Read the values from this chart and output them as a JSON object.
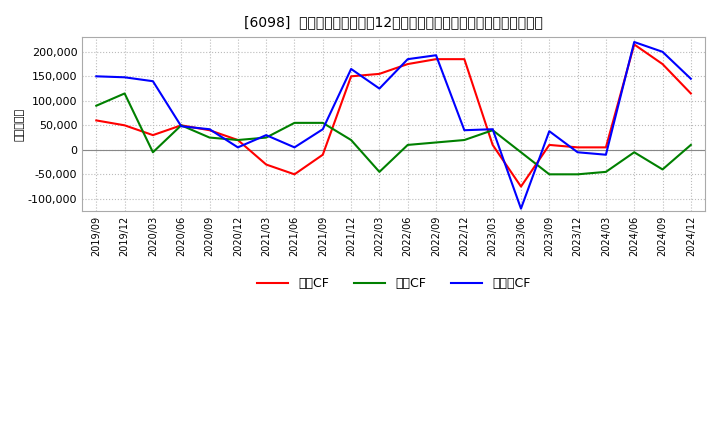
{
  "title": "[6098]  キャッシュフローの12か月移動合計の対前年同期増減額の推移",
  "ylabel": "（百万円）",
  "background_color": "#ffffff",
  "plot_bg_color": "#ffffff",
  "grid_color": "#aaaaaa",
  "x_labels": [
    "2019/09",
    "2019/12",
    "2020/03",
    "2020/06",
    "2020/09",
    "2020/12",
    "2021/03",
    "2021/06",
    "2021/09",
    "2021/12",
    "2022/03",
    "2022/06",
    "2022/09",
    "2022/12",
    "2023/03",
    "2023/06",
    "2023/09",
    "2023/12",
    "2024/03",
    "2024/06",
    "2024/09",
    "2024/12"
  ],
  "営業CF": [
    60000,
    50000,
    30000,
    50000,
    40000,
    20000,
    -30000,
    -50000,
    -10000,
    150000,
    155000,
    175000,
    185000,
    185000,
    10000,
    -75000,
    10000,
    5000,
    5000,
    215000,
    175000,
    115000
  ],
  "投資CF": [
    90000,
    115000,
    -5000,
    50000,
    25000,
    20000,
    25000,
    55000,
    55000,
    20000,
    -45000,
    10000,
    15000,
    20000,
    40000,
    -5000,
    -50000,
    -50000,
    -45000,
    -5000,
    -40000,
    10000
  ],
  "フリーCF": [
    150000,
    148000,
    140000,
    48000,
    42000,
    5000,
    30000,
    5000,
    42000,
    165000,
    125000,
    185000,
    193000,
    40000,
    42000,
    -120000,
    38000,
    -5000,
    -10000,
    220000,
    200000,
    145000
  ],
  "line_colors": {
    "営業CF": "#ff0000",
    "投資CF": "#008000",
    "フリーCF": "#0000ff"
  },
  "ylim": [
    -125000,
    230000
  ],
  "yticks": [
    -100000,
    -50000,
    0,
    50000,
    100000,
    150000,
    200000
  ],
  "legend_labels": [
    "営業CF",
    "投資CF",
    "フリーCF"
  ]
}
